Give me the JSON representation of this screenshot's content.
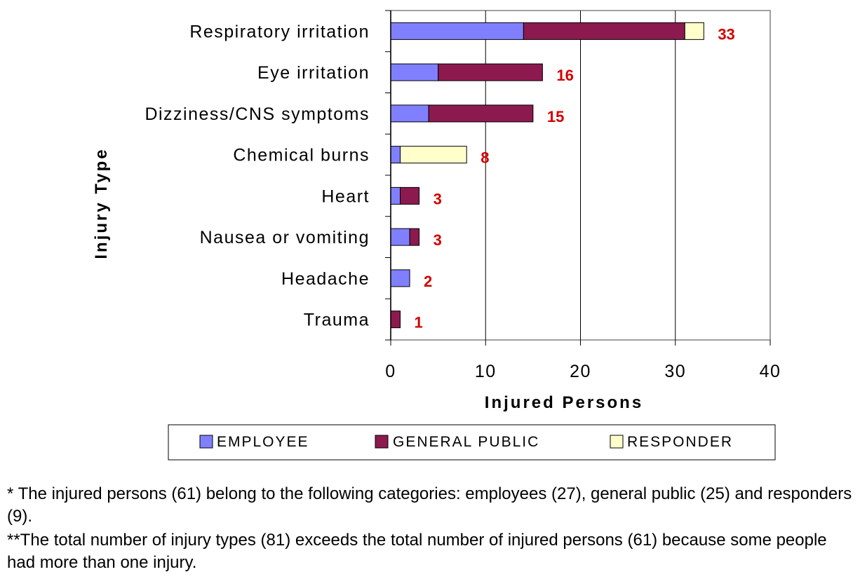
{
  "chart_data": {
    "type": "bar",
    "orientation": "horizontal",
    "stacked": true,
    "categories": [
      "Respiratory irritation",
      "Eye irritation",
      "Dizziness/CNS symptoms",
      "Chemical burns",
      "Heart",
      "Nausea or vomiting",
      "Headache",
      "Trauma"
    ],
    "series": [
      {
        "name": "EMPLOYEE",
        "color": "#8080ff",
        "values": [
          14,
          5,
          4,
          1,
          1,
          2,
          2,
          0
        ]
      },
      {
        "name": "GENERAL PUBLIC",
        "color": "#8c1a4f",
        "values": [
          17,
          11,
          11,
          0,
          2,
          1,
          0,
          1
        ]
      },
      {
        "name": "RESPONDER",
        "color": "#ffffcc",
        "values": [
          2,
          0,
          0,
          7,
          0,
          0,
          0,
          0
        ]
      }
    ],
    "totals": [
      "33",
      "16",
      "15",
      "8",
      "3",
      "3",
      "2",
      "1"
    ],
    "xlabel": "Injured Persons",
    "ylabel": "Injury Type",
    "xlim": [
      0,
      40
    ],
    "xticks": [
      "0",
      "10",
      "20",
      "30",
      "40"
    ],
    "grid": "vertical",
    "legend": "bottom"
  },
  "footnotes": {
    "note1": "* The injured persons (61) belong to the following categories:  employees (27), general public (25) and responders (9).",
    "note2": "**The total number of injury types (81) exceeds the total number of injured persons (61) because some people had more than one injury."
  }
}
